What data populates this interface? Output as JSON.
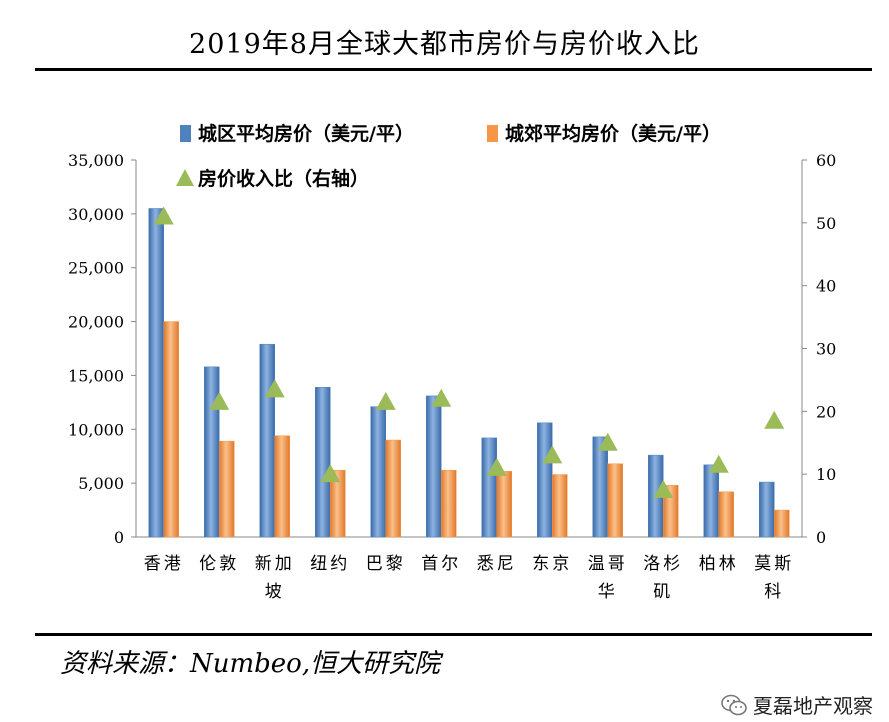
{
  "title": "2019年8月全球大都市房价与房价收入比",
  "source": "资料来源：Numbeo,恒大研究院",
  "watermark": "夏磊地产观察",
  "colors": {
    "urban": "#4f81bd",
    "suburban": "#f79646",
    "ratio": "#9bbb59"
  },
  "chart_data": {
    "type": "bar",
    "categories": [
      [
        "香港"
      ],
      [
        "伦敦"
      ],
      [
        "新加",
        "坡"
      ],
      [
        "纽约"
      ],
      [
        "巴黎"
      ],
      [
        "首尔"
      ],
      [
        "悉尼"
      ],
      [
        "东京"
      ],
      [
        "温哥",
        "华"
      ],
      [
        "洛杉",
        "矶"
      ],
      [
        "柏林"
      ],
      [
        "莫斯",
        "科"
      ]
    ],
    "series": [
      {
        "name": "城区平均房价（美元/平）",
        "axis": "left",
        "kind": "bar",
        "values": [
          30500,
          15800,
          17900,
          13900,
          12100,
          13100,
          9200,
          10600,
          9300,
          7600,
          6700,
          5100
        ]
      },
      {
        "name": "城郊平均房价（美元/平）",
        "axis": "left",
        "kind": "bar",
        "values": [
          20000,
          8900,
          9400,
          6200,
          9000,
          6200,
          6100,
          5800,
          6800,
          4800,
          4200,
          2500
        ]
      },
      {
        "name": "房价收入比（右轴）",
        "axis": "right",
        "kind": "marker",
        "values": [
          51,
          21.5,
          23.5,
          10,
          21.5,
          22,
          11,
          13,
          15,
          7.5,
          11.5,
          18.5
        ]
      }
    ],
    "y_left": {
      "min": 0,
      "max": 35000,
      "ticks": [
        "0",
        "5,000",
        "10,000",
        "15,000",
        "20,000",
        "25,000",
        "30,000",
        "35,000"
      ]
    },
    "y_right": {
      "min": 0,
      "max": 60,
      "ticks": [
        "0",
        "10",
        "20",
        "30",
        "40",
        "50",
        "60"
      ]
    },
    "legend_position": "top-left",
    "grid": false
  }
}
